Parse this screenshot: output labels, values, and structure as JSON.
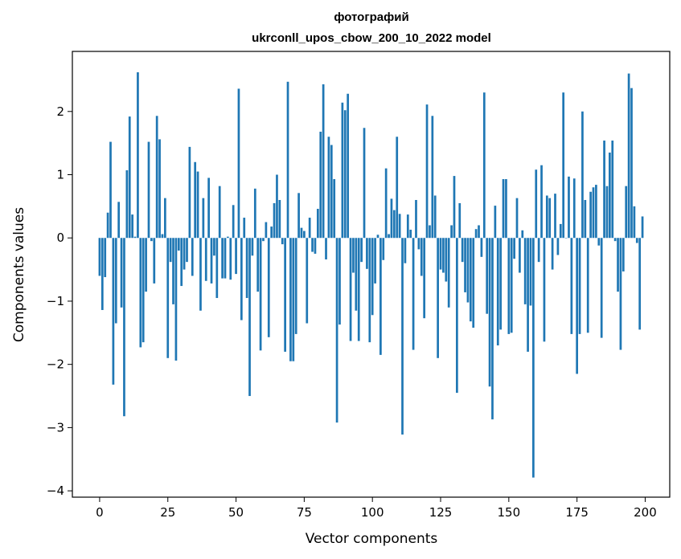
{
  "chart_data": {
    "type": "bar",
    "title": "фотографий",
    "subtitle": "ukrconll_upos_cbow_200_10_2022 model",
    "xlabel": "Vector components",
    "ylabel": "Components values",
    "xlim": [
      -10,
      209
    ],
    "ylim": [
      -4.1,
      2.95
    ],
    "xticks": [
      0,
      25,
      50,
      75,
      100,
      125,
      150,
      175,
      200
    ],
    "yticks": [
      -4,
      -3,
      -2,
      -1,
      0,
      1,
      2
    ],
    "bar_color": "#1f77b4",
    "grid": false,
    "legend": "none",
    "values": [
      -0.6,
      -1.14,
      -0.62,
      0.4,
      1.52,
      -2.32,
      -1.35,
      0.57,
      -1.1,
      -2.82,
      1.07,
      1.92,
      0.37,
      0.02,
      2.62,
      -1.73,
      -1.65,
      -0.85,
      1.52,
      -0.05,
      -0.72,
      1.93,
      1.56,
      0.06,
      0.63,
      -1.9,
      -0.38,
      -1.05,
      -1.94,
      -0.2,
      -0.76,
      -0.5,
      -0.38,
      1.44,
      -0.6,
      1.2,
      1.05,
      -1.15,
      0.63,
      -0.68,
      0.95,
      -0.72,
      -0.28,
      -0.95,
      0.82,
      -0.64,
      -0.64,
      0.02,
      -0.66,
      0.52,
      -0.57,
      2.36,
      -1.3,
      0.32,
      -0.95,
      -2.5,
      -0.28,
      0.78,
      -0.85,
      -1.78,
      -0.05,
      0.25,
      -1.57,
      0.18,
      0.55,
      1.0,
      0.6,
      -0.1,
      -1.8,
      2.47,
      -1.95,
      -1.95,
      -1.52,
      0.71,
      0.16,
      0.11,
      -1.35,
      0.32,
      -0.22,
      -0.25,
      0.46,
      1.68,
      2.43,
      -0.34,
      1.6,
      1.47,
      0.93,
      -2.92,
      -1.37,
      2.14,
      2.02,
      2.28,
      -1.63,
      -0.55,
      -1.15,
      -1.63,
      -0.38,
      1.74,
      -0.49,
      -1.65,
      -1.22,
      -0.72,
      0.05,
      -1.85,
      -0.35,
      1.1,
      0.06,
      0.62,
      0.44,
      1.6,
      0.38,
      -3.11,
      -0.4,
      0.37,
      0.13,
      -1.77,
      0.6,
      -0.18,
      -0.6,
      -1.27,
      2.11,
      0.2,
      1.93,
      0.67,
      -1.9,
      -0.5,
      -0.55,
      -0.69,
      -1.1,
      0.2,
      0.98,
      -2.45,
      0.55,
      -0.38,
      -0.86,
      -1.02,
      -1.32,
      -1.42,
      0.14,
      0.2,
      -0.3,
      2.3,
      -1.2,
      -2.35,
      -2.87,
      0.51,
      -1.7,
      -1.45,
      0.93,
      0.93,
      -1.52,
      -1.5,
      -0.33,
      0.63,
      -0.55,
      0.12,
      -1.05,
      -1.8,
      -1.07,
      -3.79,
      1.08,
      -0.38,
      1.15,
      -1.64,
      0.67,
      0.63,
      -0.5,
      0.7,
      -0.27,
      0.22,
      2.3,
      0.0,
      0.97,
      -1.52,
      0.94,
      -2.15,
      -1.52,
      2.0,
      0.6,
      -1.5,
      0.73,
      0.8,
      0.84,
      -0.12,
      -1.58,
      1.54,
      0.82,
      1.35,
      1.54,
      -0.05,
      -0.85,
      -1.77,
      -0.53,
      0.82,
      2.6,
      2.37,
      0.5,
      -0.08,
      -1.45,
      0.34
    ]
  }
}
